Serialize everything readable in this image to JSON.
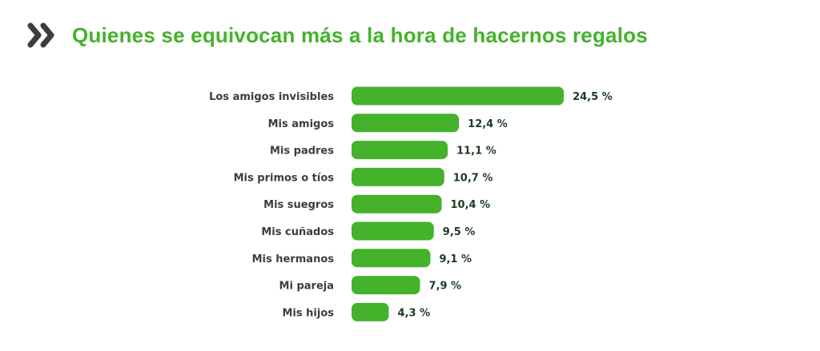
{
  "header": {
    "title": "Quienes se equivocan más a la hora de hacernos regalos",
    "icon": "double-chevron-right-icon",
    "title_color": "#44b22b",
    "icon_color": "#3d3d3d"
  },
  "chart_data": {
    "type": "bar",
    "orientation": "horizontal",
    "title": "Quienes se equivocan más a la hora de hacernos regalos",
    "categories": [
      "Los amigos invisibles",
      "Mis amigos",
      "Mis padres",
      "Mis primos o tíos",
      "Mis suegros",
      "Mis cuñados",
      "Mis hermanos",
      "Mi pareja",
      "Mis hijos"
    ],
    "values": [
      24.5,
      12.4,
      11.1,
      10.7,
      10.4,
      9.5,
      9.1,
      7.9,
      4.3
    ],
    "value_labels": [
      "24,5 %",
      "12,4 %",
      "11,1 %",
      "10,7 %",
      "10,4 %",
      "9,5 %",
      "9,1 %",
      "7,9 %",
      "4,3 %"
    ],
    "bar_color": "#44b22b",
    "grid": false,
    "legend": "none"
  }
}
